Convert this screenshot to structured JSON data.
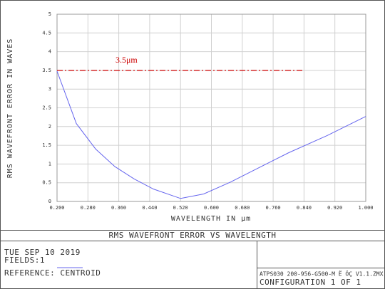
{
  "chart_data": {
    "type": "line",
    "ylabel": "RMS WAVEFRONT ERROR IN WAVES",
    "xlabel": "WAVELENGTH IN µm",
    "x": [
      0.2,
      0.25,
      0.3,
      0.35,
      0.4,
      0.45,
      0.52,
      0.58,
      0.65,
      0.7,
      0.8,
      0.9,
      1.0
    ],
    "series": [
      {
        "color": "#6666ee",
        "values": [
          3.48,
          2.08,
          1.4,
          0.93,
          0.6,
          0.33,
          0.08,
          0.2,
          0.52,
          0.78,
          1.3,
          1.76,
          2.27
        ]
      }
    ],
    "xlim": [
      0.2,
      1.0
    ],
    "xticks": [
      {
        "value": 0.2,
        "label": "0.200"
      },
      {
        "value": 0.28,
        "label": "0.280"
      },
      {
        "value": 0.36,
        "label": "0.360"
      },
      {
        "value": 0.44,
        "label": "0.440"
      },
      {
        "value": 0.52,
        "label": "0.520"
      },
      {
        "value": 0.6,
        "label": "0.600"
      },
      {
        "value": 0.68,
        "label": "0.680"
      },
      {
        "value": 0.76,
        "label": "0.760"
      },
      {
        "value": 0.84,
        "label": "0.840"
      },
      {
        "value": 0.92,
        "label": "0.920"
      },
      {
        "value": 1.0,
        "label": "1.000"
      }
    ],
    "ylim": [
      0,
      5
    ],
    "yticks": [
      0,
      0.5,
      1,
      1.5,
      2,
      2.5,
      3,
      3.5,
      4,
      4.5,
      5
    ],
    "grid": true,
    "annotation": {
      "text": "3.5μm",
      "value": 3.5,
      "xrange": [
        0.2,
        0.84
      ],
      "color": "#cc0000"
    }
  },
  "footer": {
    "title": "RMS WAVEFRONT ERROR VS WAVELENGTH",
    "date": "TUE SEP 10 2019",
    "fields": "FIELDS:1",
    "reference": "REFERENCE: CENTROID",
    "file": "ATPS030 200-956-G500-M  Ё ÖÇ V1.1.ZMX",
    "configuration": "CONFIGURATION 1 OF 1"
  }
}
